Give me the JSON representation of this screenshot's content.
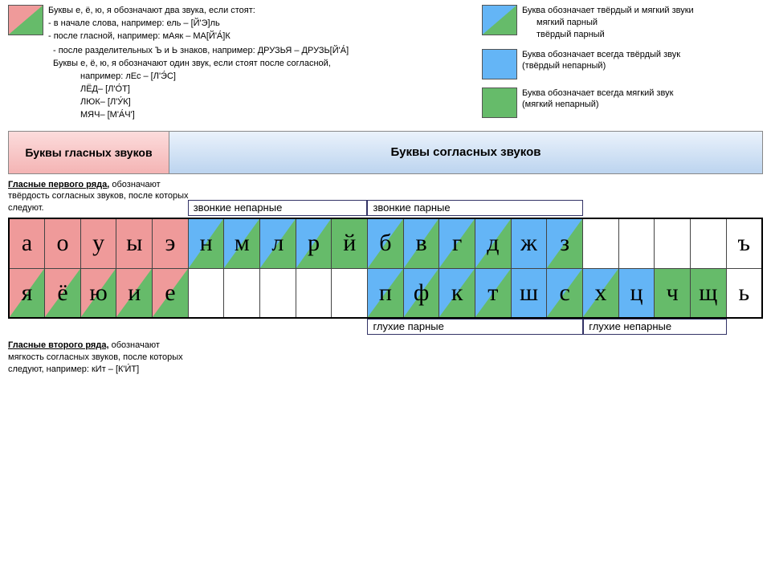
{
  "rules": {
    "line1": "Буквы е, ё, ю, я обозначают два звука, если стоят:",
    "line2": "- в начале слова, например: ель – [Й'Э]ль",
    "line3": "- после гласной, например: мАяк – МА[Й'А́]К",
    "line4": "- после разделительных Ъ и Ь знаков, например: ДРУЗЬЯ – ДРУЗЬ[Й'А́]",
    "line5": "Буквы е, ё, ю, я обозначают один звук, если стоят после согласной,",
    "line6": "например: лЕс – [Л'Э́С]",
    "ex1": "ЛЁД– [Л'О́Т]",
    "ex2": "ЛЮК– [Л'У́К]",
    "ex3": "МЯЧ– [М'А́Ч']"
  },
  "legend": {
    "l1a": "Буква обозначает твёрдый и мягкий звуки",
    "l1b": "мягкий парный",
    "l1c": "твёрдый парный",
    "l2a": "Буква обозначает всегда твёрдый звук",
    "l2b": "(твёрдый непарный)",
    "l3a": "Буква обозначает всегда мягкий звук",
    "l3b": "(мягкий непарный)"
  },
  "headings": {
    "vowels": "Буквы гласных звуков",
    "consonants": "Буквы согласных звуков"
  },
  "notes": {
    "topA": "Гласные первого ряда,",
    "topB": "обозначают твёрдость согласных звуков, после которых следуют.",
    "botA": "Гласные второго ряда,",
    "botB": "обозначают мягкость согласных звуков, после которых следуют, например: кИт – [К'И́Т]"
  },
  "cats": {
    "zvNep": "звонкие непарные",
    "zvPar": "звонкие парные",
    "glPar": "глухие парные",
    "glNep": "глухие непарные"
  },
  "colors": {
    "pink": "#ef9a9a",
    "blue": "#64b5f6",
    "green": "#66bb6a",
    "border": "#444444"
  },
  "grid": {
    "cols": 21,
    "row1": [
      {
        "t": "а",
        "c": "pink"
      },
      {
        "t": "о",
        "c": "pink"
      },
      {
        "t": "у",
        "c": "pink"
      },
      {
        "t": "ы",
        "c": "pink"
      },
      {
        "t": "э",
        "c": "pink"
      },
      {
        "t": "н",
        "c": "bg"
      },
      {
        "t": "м",
        "c": "bg"
      },
      {
        "t": "л",
        "c": "bg"
      },
      {
        "t": "р",
        "c": "bg"
      },
      {
        "t": "й",
        "c": "gr"
      },
      {
        "t": "б",
        "c": "bg"
      },
      {
        "t": "в",
        "c": "bg"
      },
      {
        "t": "г",
        "c": "bg"
      },
      {
        "t": "д",
        "c": "bg"
      },
      {
        "t": "ж",
        "c": "bl"
      },
      {
        "t": "з",
        "c": "bg"
      },
      {
        "t": "",
        "c": "wh"
      },
      {
        "t": "",
        "c": "wh"
      },
      {
        "t": "",
        "c": "wh"
      },
      {
        "t": "",
        "c": "wh"
      },
      {
        "t": "ъ",
        "c": "wh"
      }
    ],
    "row2": [
      {
        "t": "я",
        "c": "pg"
      },
      {
        "t": "ё",
        "c": "pg"
      },
      {
        "t": "ю",
        "c": "pg"
      },
      {
        "t": "и",
        "c": "pg"
      },
      {
        "t": "е",
        "c": "pg"
      },
      {
        "t": "",
        "c": "wh"
      },
      {
        "t": "",
        "c": "wh"
      },
      {
        "t": "",
        "c": "wh"
      },
      {
        "t": "",
        "c": "wh"
      },
      {
        "t": "",
        "c": "wh"
      },
      {
        "t": "п",
        "c": "bg"
      },
      {
        "t": "ф",
        "c": "bg"
      },
      {
        "t": "к",
        "c": "bg"
      },
      {
        "t": "т",
        "c": "bg"
      },
      {
        "t": "ш",
        "c": "bl"
      },
      {
        "t": "с",
        "c": "bg"
      },
      {
        "t": "х",
        "c": "bg"
      },
      {
        "t": "ц",
        "c": "bl"
      },
      {
        "t": "ч",
        "c": "gr"
      },
      {
        "t": "щ",
        "c": "gr"
      },
      {
        "t": "ь",
        "c": "wh"
      }
    ]
  },
  "layout": {
    "catZvNep_left_pct": 23.8,
    "catZvNep_w_pct": 23.8,
    "catZvPar_left_pct": 47.6,
    "catZvPar_w_pct": 28.6,
    "catGlPar_left_pct": 47.6,
    "catGlPar_w_pct": 28.6,
    "catGlNep_left_pct": 76.2,
    "catGlNep_w_pct": 19.0
  }
}
